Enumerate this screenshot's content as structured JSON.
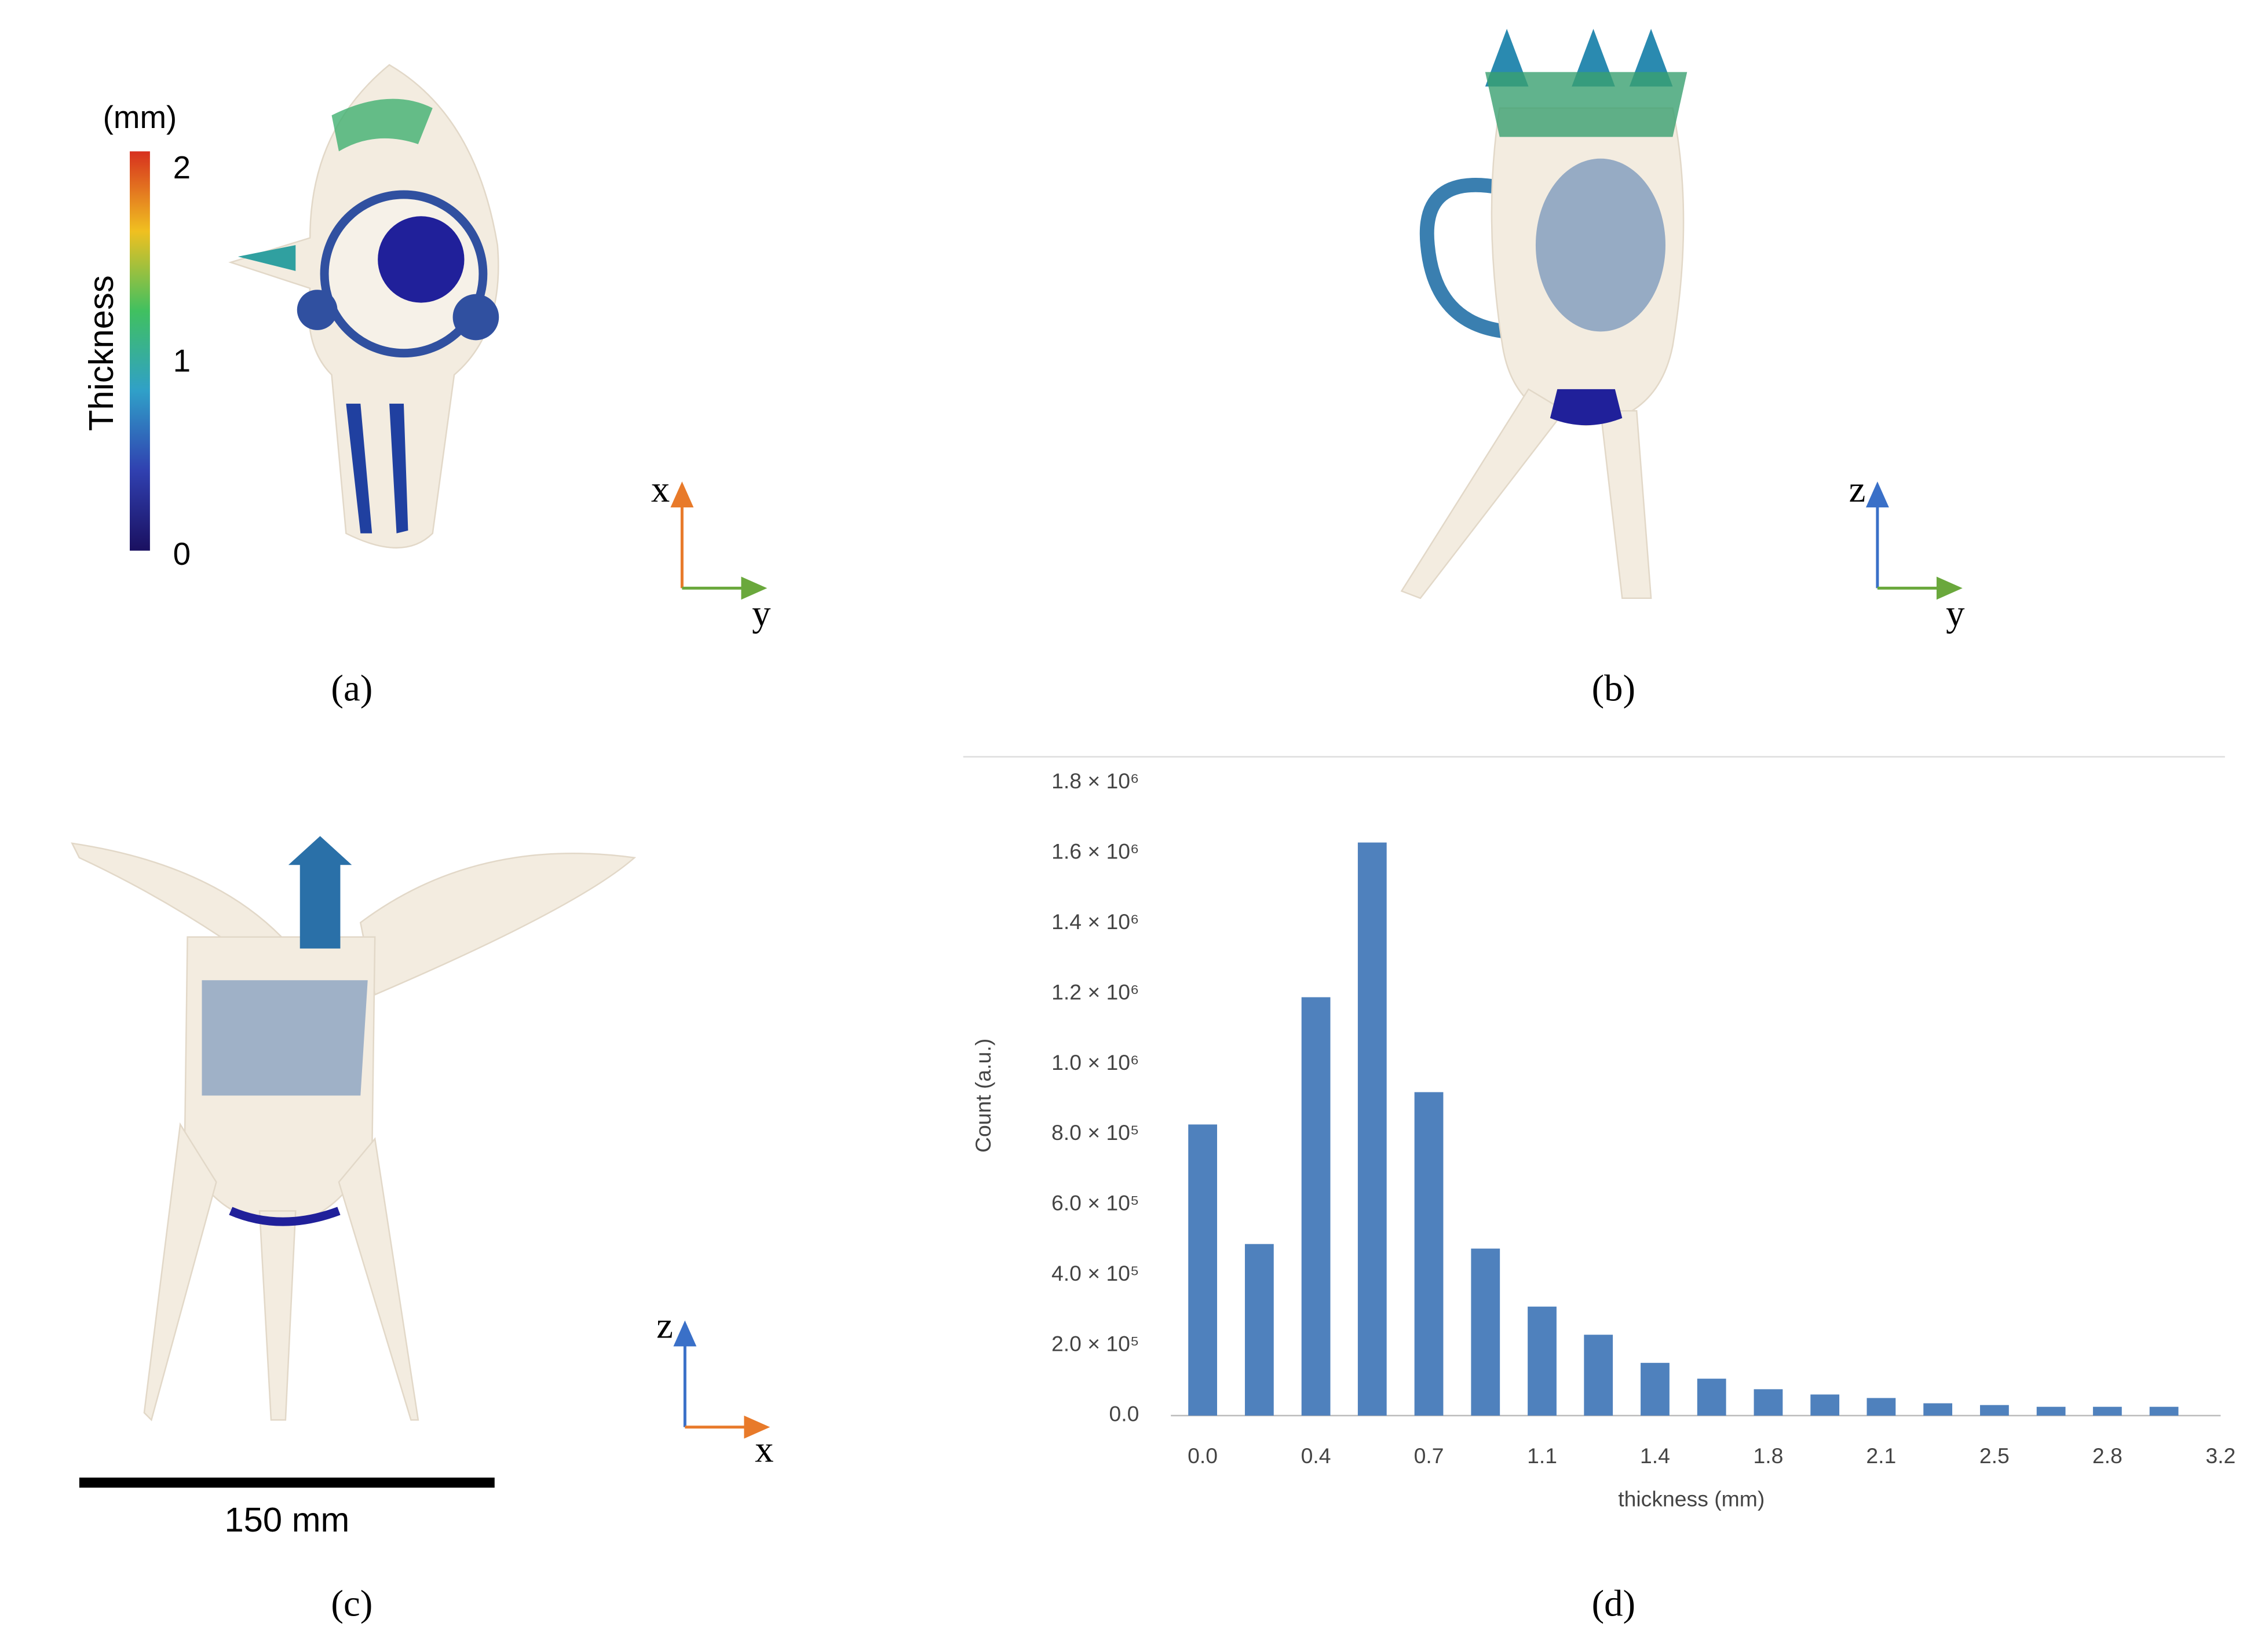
{
  "panels": {
    "a": "(a)",
    "b": "(b)",
    "c": "(c)",
    "d": "(d)"
  },
  "colorbar": {
    "unit": "(mm)",
    "title": "Thickness",
    "ticks": [
      "2",
      "1",
      "0"
    ]
  },
  "triads": {
    "a": [
      "x",
      "y"
    ],
    "b": [
      "z",
      "y"
    ],
    "c": [
      "z",
      "x"
    ]
  },
  "scale_bar": "150 mm",
  "chart_data": {
    "type": "bar",
    "xlabel": "thickness (mm)",
    "ylabel": "Count (a.u.)",
    "color": "#4f81bd",
    "x": [
      0,
      0.178,
      0.356,
      0.533,
      0.711,
      0.889,
      1.067,
      1.244,
      1.422,
      1.6,
      1.778,
      1.956,
      2.133,
      2.311,
      2.489,
      2.667,
      2.844,
      3.022
    ],
    "values": [
      828000,
      488000,
      1190000,
      1630000,
      920000,
      475000,
      310000,
      230000,
      150000,
      105000,
      75000,
      60000,
      50000,
      35000,
      30000,
      25000,
      25000,
      25000
    ],
    "xlim": [
      -0.1,
      3.2
    ],
    "xticks": [
      {
        "value": 0,
        "label": "0.0"
      },
      {
        "value": 0.356,
        "label": "0.4"
      },
      {
        "value": 0.711,
        "label": "0.7"
      },
      {
        "value": 1.067,
        "label": "1.1"
      },
      {
        "value": 1.422,
        "label": "1.4"
      },
      {
        "value": 1.778,
        "label": "1.8"
      },
      {
        "value": 2.133,
        "label": "2.1"
      },
      {
        "value": 2.489,
        "label": "2.5"
      },
      {
        "value": 2.844,
        "label": "2.8"
      },
      {
        "value": 3.2,
        "label": "3.2"
      }
    ],
    "ylim": [
      0,
      1800000
    ],
    "yticks": [
      {
        "value": 0,
        "label": "0.0"
      },
      {
        "value": 200000,
        "label": "2.0 × 10⁵"
      },
      {
        "value": 400000,
        "label": "4.0 × 10⁵"
      },
      {
        "value": 600000,
        "label": "6.0 × 10⁵"
      },
      {
        "value": 800000,
        "label": "8.0 × 10⁵"
      },
      {
        "value": 1000000,
        "label": "1.0 × 10⁶"
      },
      {
        "value": 1200000,
        "label": "1.2 × 10⁶"
      },
      {
        "value": 1400000,
        "label": "1.4 × 10⁶"
      },
      {
        "value": 1600000,
        "label": "1.6 × 10⁶"
      },
      {
        "value": 1800000,
        "label": "1.8 × 10⁶"
      }
    ]
  }
}
